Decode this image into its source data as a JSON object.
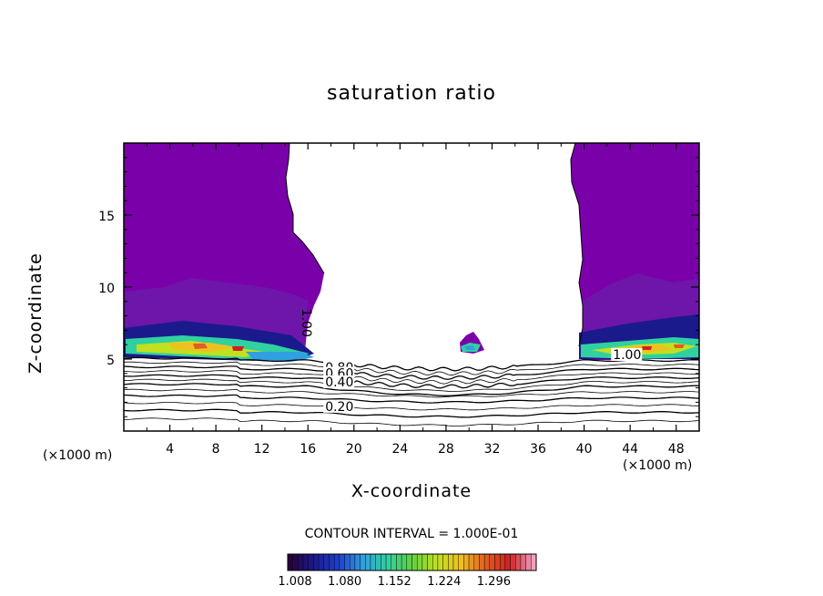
{
  "chart_data": {
    "type": "contour",
    "title": "saturation ratio",
    "xlabel": "X-coordinate",
    "ylabel": "Z-coordinate",
    "x_unit": "(×1000 m)",
    "xlim": [
      0,
      50
    ],
    "ylim": [
      0,
      20
    ],
    "x_ticks": [
      4,
      8,
      12,
      16,
      20,
      24,
      28,
      32,
      36,
      40,
      44,
      48
    ],
    "y_ticks": [
      5,
      10,
      15
    ],
    "contour_interval_text": "CONTOUR INTERVAL = 1.000E-01",
    "contour_labels": [
      {
        "text": "1.00",
        "x": 15.5,
        "y": 8.5,
        "rotated": true
      },
      {
        "text": "1.00",
        "x": 42.5,
        "y": 5.0
      },
      {
        "text": "0.80",
        "x": 17.5,
        "y": 4.1
      },
      {
        "text": "0.60",
        "x": 17.5,
        "y": 3.7
      },
      {
        "text": "0.40",
        "x": 17.5,
        "y": 3.1
      },
      {
        "text": "0.20",
        "x": 17.5,
        "y": 1.4
      }
    ],
    "colorbar": {
      "tick_labels": [
        "1.008",
        "1.080",
        "1.152",
        "1.224",
        "1.296"
      ],
      "colors": [
        "#2a0040",
        "#1a1a8c",
        "#2040d0",
        "#30a0e0",
        "#30d0a0",
        "#60d040",
        "#c0e020",
        "#f0c020",
        "#e06020",
        "#d02020",
        "#f0a0c0"
      ]
    },
    "colors": {
      "cloud_fill": "#7a00aa",
      "cloud_dark": "#6a1fa8",
      "cloud_light": "#8a4fc8"
    }
  }
}
